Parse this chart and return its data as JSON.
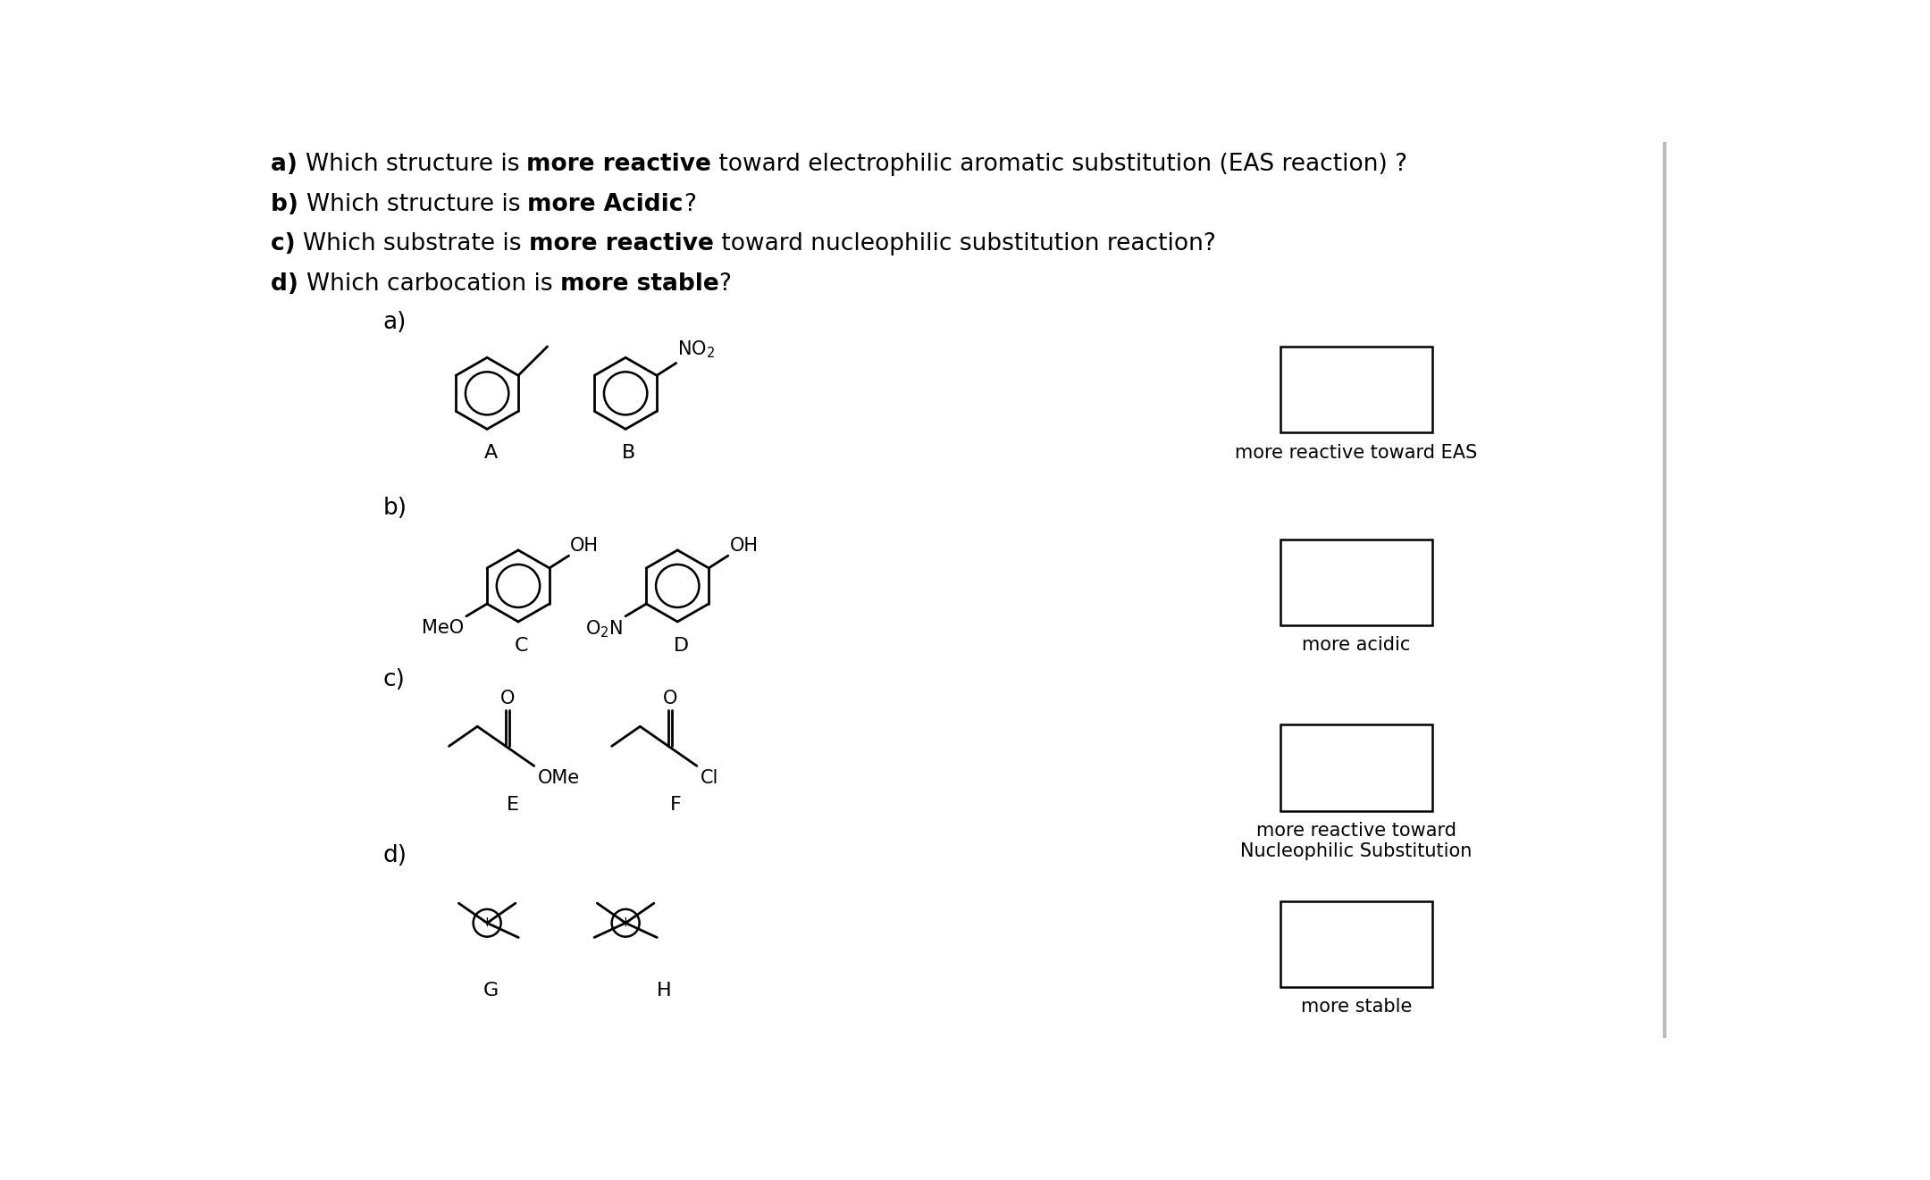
{
  "background_color": "#ffffff",
  "text_color": "#000000",
  "label_a": "more reactive toward EAS",
  "label_b": "more acidic",
  "label_c": "more reactive toward\nNucleophilic Substitution",
  "label_d": "more stable",
  "box_color": "#000000",
  "font_size_q": 19,
  "font_size_labels": 15,
  "font_size_struct": 16,
  "font_size_chem": 15,
  "lw": 2.0,
  "ring_r": 0.52
}
